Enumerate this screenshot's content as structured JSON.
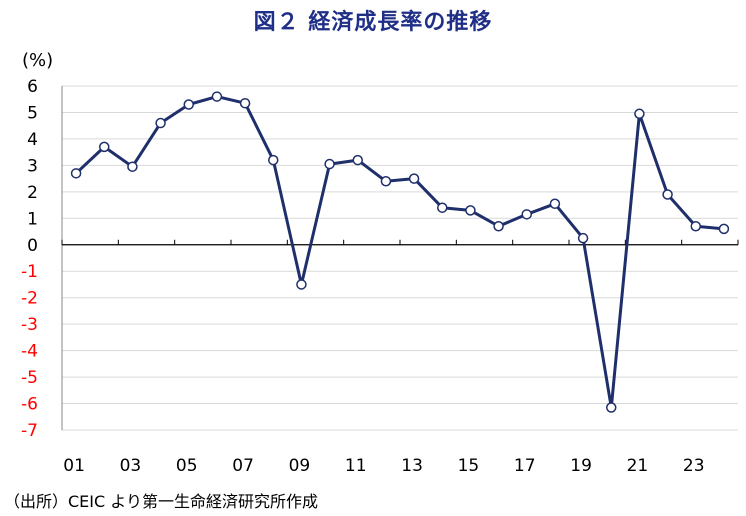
{
  "chart_data": {
    "type": "line",
    "title": "図２ 経済成長率の推移",
    "ylabel": "(%)",
    "xlabel": "",
    "ylim": [
      -7,
      6
    ],
    "yticks": [
      6,
      5,
      4,
      3,
      2,
      1,
      0,
      -1,
      -2,
      -3,
      -4,
      -5,
      -6,
      -7
    ],
    "negative_tick_color": "#ff0000",
    "positive_tick_color": "#000000",
    "line_color": "#1f2f6b",
    "grid": true,
    "legend": "none",
    "x_tick_labels": [
      "01",
      "03",
      "05",
      "07",
      "09",
      "11",
      "13",
      "15",
      "17",
      "19",
      "21",
      "23"
    ],
    "series": [
      {
        "x": [
          2001,
          2002,
          2003,
          2004,
          2005,
          2006,
          2007,
          2008,
          2009,
          2010,
          2011,
          2012,
          2013,
          2014,
          2015,
          2016,
          2017,
          2018,
          2019,
          2020,
          2021,
          2022,
          2023,
          2024
        ],
        "values": [
          2.7,
          3.7,
          2.95,
          4.6,
          5.3,
          5.6,
          5.35,
          3.2,
          -1.5,
          3.05,
          3.2,
          2.4,
          2.5,
          1.4,
          1.3,
          0.7,
          1.15,
          1.55,
          0.25,
          -6.15,
          4.95,
          1.9,
          0.7,
          0.6
        ]
      }
    ]
  },
  "source_note": "（出所）CEIC より第一生命経済研究所作成"
}
